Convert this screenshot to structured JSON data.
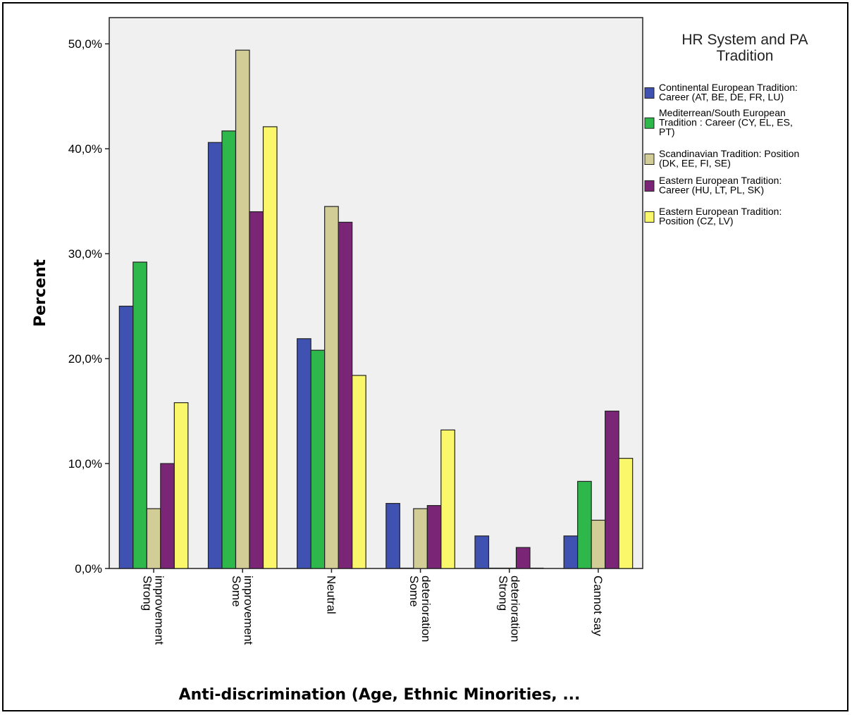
{
  "chart_data": {
    "type": "bar",
    "title": "",
    "ylabel": "Percent",
    "xlabel": "Anti-discrimination (Age, Ethnic Minorities, ...",
    "ylim": [
      0,
      52.5
    ],
    "yticks": [
      {
        "value": 0,
        "label": "0,0%"
      },
      {
        "value": 10,
        "label": "10,0%"
      },
      {
        "value": 20,
        "label": "20,0%"
      },
      {
        "value": 30,
        "label": "30,0%"
      },
      {
        "value": 40,
        "label": "40,0%"
      },
      {
        "value": 50,
        "label": "50,0%"
      }
    ],
    "categories": [
      [
        "Strong",
        "improvement"
      ],
      [
        "Some",
        "improvement"
      ],
      [
        "Neutral"
      ],
      [
        "Some",
        "deterioration"
      ],
      [
        "Strong",
        "deterioration"
      ],
      [
        "Cannot say"
      ]
    ],
    "legend": {
      "title": [
        "HR System and PA",
        "Tradition"
      ],
      "placement": "right"
    },
    "grid": false,
    "series": [
      {
        "name": [
          "Continental European Tradition:",
          "Career (AT, BE, DE, FR, LU)"
        ],
        "color": "#3F51B1",
        "values": [
          25.0,
          40.6,
          21.9,
          6.2,
          3.1,
          3.1
        ]
      },
      {
        "name": [
          "Mediterrean/South European",
          "Tradition : Career (CY, EL, ES,",
          "PT)"
        ],
        "color": "#2EB84B",
        "values": [
          29.2,
          41.7,
          20.8,
          0,
          0,
          8.3
        ]
      },
      {
        "name": [
          "Scandinavian Tradition: Position",
          "(DK, EE, FI, SE)"
        ],
        "color": "#D2CC96",
        "values": [
          5.7,
          49.4,
          34.5,
          5.7,
          0,
          4.6
        ]
      },
      {
        "name": [
          "Eastern European Tradition:",
          "Career (HU, LT, PL, SK)"
        ],
        "color": "#7A2576",
        "values": [
          10.0,
          34.0,
          33.0,
          6.0,
          2.0,
          15.0
        ]
      },
      {
        "name": [
          "Eastern European Tradition:",
          "Position (CZ, LV)"
        ],
        "color": "#FAF86A",
        "values": [
          15.8,
          42.1,
          18.4,
          13.2,
          0,
          10.5
        ]
      }
    ]
  }
}
